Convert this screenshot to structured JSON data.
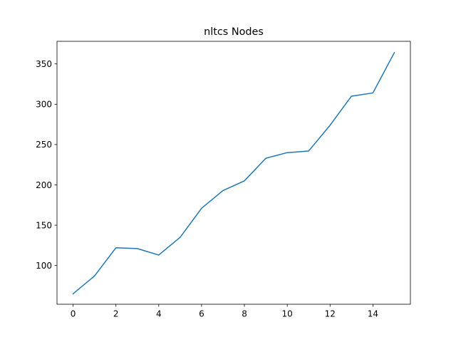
{
  "chart_data": {
    "type": "line",
    "title": "nltcs Nodes",
    "xlabel": "",
    "ylabel": "",
    "xlim": [
      -0.75,
      15.75
    ],
    "ylim": [
      52.0,
      378.0
    ],
    "x_ticks": [
      0,
      2,
      4,
      6,
      8,
      10,
      12,
      14
    ],
    "y_ticks": [
      100,
      150,
      200,
      250,
      300,
      350
    ],
    "grid": false,
    "series": [
      {
        "color": "#1f77b4",
        "x": [
          0,
          1,
          2,
          3,
          4,
          5,
          6,
          7,
          8,
          9,
          10,
          11,
          12,
          13,
          14,
          15
        ],
        "y": [
          65,
          87,
          122,
          121,
          113,
          135,
          171,
          193,
          205,
          233,
          240,
          242,
          274,
          310,
          314,
          364
        ]
      }
    ]
  }
}
